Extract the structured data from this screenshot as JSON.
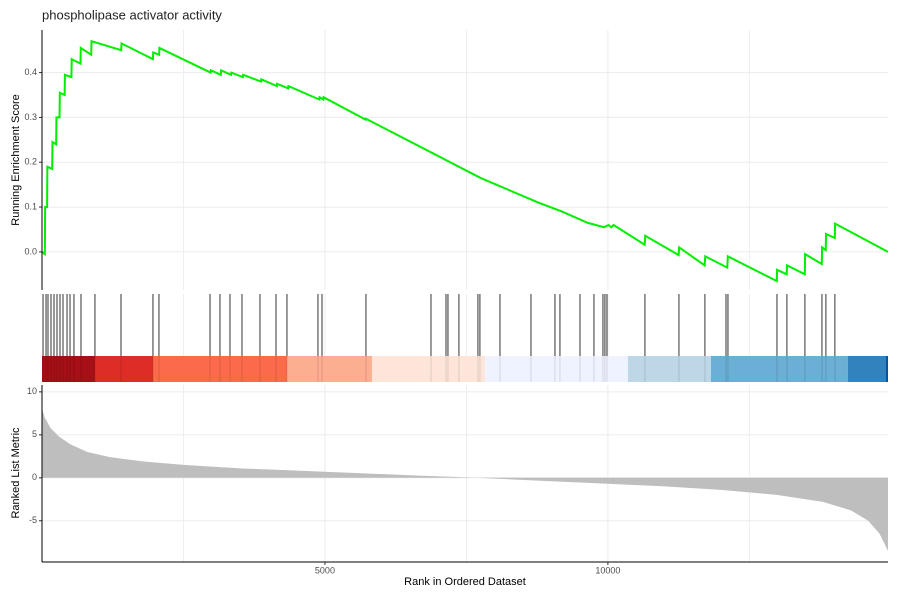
{
  "chart_data": {
    "type": "gsea",
    "title": "phospholipase activator activity",
    "xlabel": "Rank in Ordered Dataset",
    "ylabel": "Running Enrichment Score",
    "y3label": "Ranked List Metric",
    "xlim": [
      0,
      14950
    ],
    "xticks": [
      5000,
      10000
    ],
    "xminor": [
      2500,
      7500,
      12500
    ],
    "ylim": [
      -0.085,
      0.495
    ],
    "yticks": [
      {
        "value": 0,
        "label": "0.0"
      },
      0.1,
      0.2,
      0.3,
      0.4
    ],
    "y3lim": [
      -9.8,
      10.8
    ],
    "y3ticks": [
      -5,
      0,
      5,
      10
    ],
    "series": [
      {
        "name": "Running Enrichment Score",
        "color": "#00ee00",
        "x": [
          0,
          50,
          55,
          90,
          95,
          180,
          185,
          250,
          255,
          310,
          315,
          400,
          405,
          520,
          525,
          680,
          685,
          870,
          875,
          1400,
          1405,
          1960,
          1965,
          2070,
          2075,
          2980,
          2985,
          3160,
          3165,
          3340,
          3345,
          3550,
          3555,
          3870,
          3875,
          4150,
          4155,
          4350,
          4355,
          4900,
          4905,
          4970,
          4975,
          5720,
          5725,
          7750,
          8770,
          9190,
          9640,
          9930,
          10010,
          10060,
          10100,
          10650,
          10660,
          11250,
          11260,
          11710,
          11720,
          12110,
          12120,
          12985,
          12990,
          13160,
          13165,
          13480,
          13485,
          13780,
          13785,
          13850,
          13855,
          14010,
          14015,
          14950
        ],
        "values": [
          0,
          -0.005,
          0.1,
          0.1,
          0.19,
          0.185,
          0.245,
          0.24,
          0.3,
          0.3,
          0.355,
          0.35,
          0.395,
          0.39,
          0.43,
          0.42,
          0.455,
          0.44,
          0.47,
          0.45,
          0.465,
          0.43,
          0.445,
          0.44,
          0.455,
          0.4,
          0.405,
          0.395,
          0.405,
          0.395,
          0.4,
          0.39,
          0.395,
          0.38,
          0.385,
          0.37,
          0.375,
          0.365,
          0.37,
          0.34,
          0.345,
          0.34,
          0.345,
          0.295,
          0.297,
          0.165,
          0.11,
          0.09,
          0.065,
          0.055,
          0.06,
          0.055,
          0.06,
          0.016,
          0.036,
          -0.007,
          0.01,
          -0.03,
          -0.01,
          -0.035,
          -0.01,
          -0.065,
          -0.04,
          -0.05,
          -0.03,
          -0.05,
          -0.005,
          -0.027,
          0.01,
          0.004,
          0.04,
          0.031,
          0.063,
          0
        ]
      }
    ],
    "hits": [
      18,
      71,
      106,
      159,
      212,
      265,
      318,
      371,
      442,
      495,
      565,
      689,
      936,
      1396,
      1961,
      2067,
      2969,
      3145,
      3322,
      3534,
      3852,
      4135,
      4329,
      4877,
      4948,
      5725,
      6874,
      7139,
      7174,
      7368,
      7704,
      7739,
      8093,
      8641,
      9065,
      9153,
      9507,
      9754,
      9913,
      9948,
      9984,
      10655,
      11256,
      11715,
      12087,
      12122,
      12988,
      13164,
      13482,
      13783,
      13853,
      14012
    ],
    "band": {
      "breaks": [
        0,
        936,
        1961,
        4329,
        5831,
        7828,
        10355,
        11822,
        14242,
        14915,
        14950
      ],
      "colors": [
        "#a50f15",
        "#de2d26",
        "#fb6a4a",
        "#fcae91",
        "#fee5d9",
        "#eff3ff",
        "#bdd7e7",
        "#6baed6",
        "#3182bd",
        "#08519c"
      ]
    },
    "metric": {
      "color": "#bebebe",
      "x": [
        0,
        50,
        150,
        300,
        500,
        800,
        1200,
        1800,
        2500,
        3500,
        5000,
        6500,
        7500,
        8000,
        9000,
        10000,
        11000,
        12000,
        13000,
        13800,
        14300,
        14600,
        14800,
        14950
      ],
      "values": [
        8.0,
        7.0,
        5.8,
        4.8,
        3.9,
        3.0,
        2.4,
        1.9,
        1.5,
        1.1,
        0.7,
        0.3,
        0.05,
        -0.1,
        -0.4,
        -0.7,
        -1.0,
        -1.4,
        -2.0,
        -2.8,
        -3.8,
        -5.0,
        -6.5,
        -8.5
      ]
    }
  }
}
